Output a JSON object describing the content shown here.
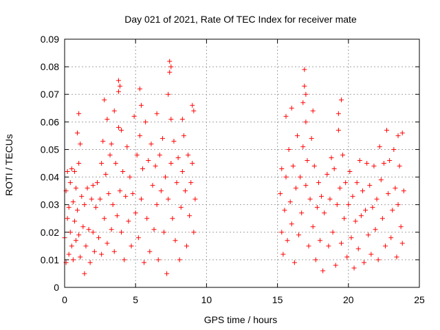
{
  "chart_data": {
    "type": "scatter",
    "title": "Day 021 of 2021, Rate Of TEC Index for receiver mate",
    "xlabel": "GPS time / hours",
    "ylabel": "ROTI / TECUs",
    "xlim": [
      0,
      25
    ],
    "ylim": [
      0,
      0.09
    ],
    "xticks": [
      "0",
      "5",
      "10",
      "15",
      "20",
      "25"
    ],
    "yticks": [
      "0",
      "0.01",
      "0.02",
      "0.03",
      "0.04",
      "0.05",
      "0.06",
      "0.07",
      "0.08",
      "0.09"
    ],
    "grid": true,
    "marker": "plus",
    "color": "#ff0000",
    "series": [
      {
        "points": [
          [
            0.0,
            0.018
          ],
          [
            0.1,
            0.009
          ],
          [
            0.1,
            0.035
          ],
          [
            0.2,
            0.025
          ],
          [
            0.2,
            0.042
          ],
          [
            0.3,
            0.012
          ],
          [
            0.3,
            0.029
          ],
          [
            0.4,
            0.038
          ],
          [
            0.4,
            0.02
          ],
          [
            0.5,
            0.043
          ],
          [
            0.5,
            0.015
          ],
          [
            0.6,
            0.031
          ],
          [
            0.6,
            0.01
          ],
          [
            0.7,
            0.024
          ],
          [
            0.7,
            0.042
          ],
          [
            0.8,
            0.017
          ],
          [
            0.8,
            0.036
          ],
          [
            0.9,
            0.056
          ],
          [
            0.9,
            0.028
          ],
          [
            1.0,
            0.063
          ],
          [
            1.0,
            0.045
          ],
          [
            1.0,
            0.019
          ],
          [
            1.1,
            0.052
          ],
          [
            1.1,
            0.011
          ],
          [
            1.2,
            0.033
          ],
          [
            1.3,
            0.022
          ],
          [
            1.4,
            0.005
          ],
          [
            1.4,
            0.03
          ],
          [
            1.5,
            0.015
          ],
          [
            1.6,
            0.036
          ],
          [
            1.7,
            0.021
          ],
          [
            1.8,
            0.009
          ],
          [
            1.9,
            0.032
          ],
          [
            2.0,
            0.02
          ],
          [
            2.0,
            0.037
          ],
          [
            2.1,
            0.013
          ],
          [
            2.2,
            0.029
          ],
          [
            2.3,
            0.038
          ],
          [
            2.4,
            0.018
          ],
          [
            2.5,
            0.032
          ],
          [
            2.6,
            0.045
          ],
          [
            2.6,
            0.012
          ],
          [
            2.7,
            0.053
          ],
          [
            2.8,
            0.068
          ],
          [
            2.8,
            0.025
          ],
          [
            2.9,
            0.041
          ],
          [
            3.0,
            0.016
          ],
          [
            3.0,
            0.061
          ],
          [
            3.1,
            0.034
          ],
          [
            3.2,
            0.048
          ],
          [
            3.3,
            0.021
          ],
          [
            3.3,
            0.052
          ],
          [
            3.4,
            0.03
          ],
          [
            3.5,
            0.064
          ],
          [
            3.5,
            0.013
          ],
          [
            3.6,
            0.045
          ],
          [
            3.7,
            0.026
          ],
          [
            3.8,
            0.075
          ],
          [
            3.8,
            0.058
          ],
          [
            3.8,
            0.071
          ],
          [
            3.9,
            0.073
          ],
          [
            3.9,
            0.035
          ],
          [
            4.0,
            0.057
          ],
          [
            4.0,
            0.02
          ],
          [
            4.1,
            0.042
          ],
          [
            4.2,
            0.01
          ],
          [
            4.3,
            0.033
          ],
          [
            4.4,
            0.051
          ],
          [
            4.5,
            0.024
          ],
          [
            4.6,
            0.04
          ],
          [
            4.7,
            0.015
          ],
          [
            4.8,
            0.034
          ],
          [
            4.9,
            0.062
          ],
          [
            5.0,
            0.027
          ],
          [
            5.1,
            0.048
          ],
          [
            5.2,
            0.018
          ],
          [
            5.3,
            0.055
          ],
          [
            5.3,
            0.072
          ],
          [
            5.4,
            0.066
          ],
          [
            5.4,
            0.032
          ],
          [
            5.5,
            0.043
          ],
          [
            5.6,
            0.009
          ],
          [
            5.7,
            0.06
          ],
          [
            5.8,
            0.025
          ],
          [
            5.9,
            0.046
          ],
          [
            6.0,
            0.013
          ],
          [
            6.1,
            0.052
          ],
          [
            6.2,
            0.037
          ],
          [
            6.3,
            0.021
          ],
          [
            6.4,
            0.044
          ],
          [
            6.5,
            0.063
          ],
          [
            6.5,
            0.03
          ],
          [
            6.6,
            0.01
          ],
          [
            6.7,
            0.048
          ],
          [
            6.8,
            0.035
          ],
          [
            6.9,
            0.054
          ],
          [
            7.0,
            0.02
          ],
          [
            7.1,
            0.04
          ],
          [
            7.2,
            0.005
          ],
          [
            7.3,
            0.07
          ],
          [
            7.3,
            0.032
          ],
          [
            7.4,
            0.082
          ],
          [
            7.4,
            0.078
          ],
          [
            7.5,
            0.08
          ],
          [
            7.5,
            0.045
          ],
          [
            7.5,
            0.061
          ],
          [
            7.6,
            0.025
          ],
          [
            7.7,
            0.053
          ],
          [
            7.8,
            0.017
          ],
          [
            7.9,
            0.038
          ],
          [
            8.0,
            0.047
          ],
          [
            8.1,
            0.01
          ],
          [
            8.2,
            0.029
          ],
          [
            8.3,
            0.061
          ],
          [
            8.3,
            0.042
          ],
          [
            8.4,
            0.055
          ],
          [
            8.5,
            0.035
          ],
          [
            8.6,
            0.015
          ],
          [
            8.7,
            0.048
          ],
          [
            8.8,
            0.026
          ],
          [
            8.9,
            0.038
          ],
          [
            9.0,
            0.066
          ],
          [
            9.0,
            0.045
          ],
          [
            9.1,
            0.064
          ],
          [
            9.1,
            0.02
          ],
          [
            9.2,
            0.032
          ],
          [
            15.2,
            0.034
          ],
          [
            15.3,
            0.02
          ],
          [
            15.3,
            0.043
          ],
          [
            15.4,
            0.012
          ],
          [
            15.5,
            0.028
          ],
          [
            15.6,
            0.062
          ],
          [
            15.6,
            0.04
          ],
          [
            15.7,
            0.017
          ],
          [
            15.8,
            0.05
          ],
          [
            15.9,
            0.031
          ],
          [
            16.0,
            0.065
          ],
          [
            16.0,
            0.023
          ],
          [
            16.1,
            0.044
          ],
          [
            16.2,
            0.009
          ],
          [
            16.3,
            0.036
          ],
          [
            16.4,
            0.055
          ],
          [
            16.5,
            0.019
          ],
          [
            16.6,
            0.04
          ],
          [
            16.7,
            0.027
          ],
          [
            16.8,
            0.067
          ],
          [
            16.8,
            0.051
          ],
          [
            16.9,
            0.079
          ],
          [
            16.9,
            0.073
          ],
          [
            17.0,
            0.07
          ],
          [
            17.0,
            0.06
          ],
          [
            17.0,
            0.037
          ],
          [
            17.1,
            0.046
          ],
          [
            17.2,
            0.015
          ],
          [
            17.3,
            0.032
          ],
          [
            17.4,
            0.054
          ],
          [
            17.5,
            0.064
          ],
          [
            17.5,
            0.022
          ],
          [
            17.6,
            0.044
          ],
          [
            17.7,
            0.01
          ],
          [
            17.8,
            0.029
          ],
          [
            17.9,
            0.038
          ],
          [
            18.0,
            0.017
          ],
          [
            18.1,
            0.033
          ],
          [
            18.2,
            0.006
          ],
          [
            18.3,
            0.027
          ],
          [
            18.5,
            0.041
          ],
          [
            18.6,
            0.015
          ],
          [
            18.7,
            0.032
          ],
          [
            18.8,
            0.047
          ],
          [
            18.9,
            0.02
          ],
          [
            19.0,
            0.043
          ],
          [
            19.1,
            0.008
          ],
          [
            19.2,
            0.03
          ],
          [
            19.3,
            0.063
          ],
          [
            19.3,
            0.057
          ],
          [
            19.4,
            0.036
          ],
          [
            19.5,
            0.068
          ],
          [
            19.5,
            0.016
          ],
          [
            19.6,
            0.048
          ],
          [
            19.7,
            0.025
          ],
          [
            19.8,
            0.038
          ],
          [
            19.9,
            0.011
          ],
          [
            20.0,
            0.03
          ],
          [
            20.1,
            0.042
          ],
          [
            20.2,
            0.018
          ],
          [
            20.3,
            0.033
          ],
          [
            20.4,
            0.007
          ],
          [
            20.5,
            0.024
          ],
          [
            20.6,
            0.038
          ],
          [
            20.7,
            0.014
          ],
          [
            20.8,
            0.046
          ],
          [
            20.9,
            0.026
          ],
          [
            21.0,
            0.035
          ],
          [
            21.1,
            0.009
          ],
          [
            21.2,
            0.028
          ],
          [
            21.3,
            0.045
          ],
          [
            21.4,
            0.019
          ],
          [
            21.5,
            0.037
          ],
          [
            21.6,
            0.012
          ],
          [
            21.7,
            0.029
          ],
          [
            21.8,
            0.044
          ],
          [
            21.9,
            0.021
          ],
          [
            22.0,
            0.032
          ],
          [
            22.1,
            0.01
          ],
          [
            22.2,
            0.051
          ],
          [
            22.3,
            0.039
          ],
          [
            22.4,
            0.025
          ],
          [
            22.5,
            0.045
          ],
          [
            22.6,
            0.015
          ],
          [
            22.7,
            0.057
          ],
          [
            22.8,
            0.034
          ],
          [
            22.9,
            0.046
          ],
          [
            23.0,
            0.018
          ],
          [
            23.1,
            0.028
          ],
          [
            23.2,
            0.05
          ],
          [
            23.3,
            0.036
          ],
          [
            23.4,
            0.011
          ],
          [
            23.5,
            0.055
          ],
          [
            23.5,
            0.03
          ],
          [
            23.6,
            0.044
          ],
          [
            23.7,
            0.022
          ],
          [
            23.8,
            0.056
          ],
          [
            23.8,
            0.016
          ],
          [
            23.9,
            0.035
          ]
        ]
      }
    ]
  }
}
